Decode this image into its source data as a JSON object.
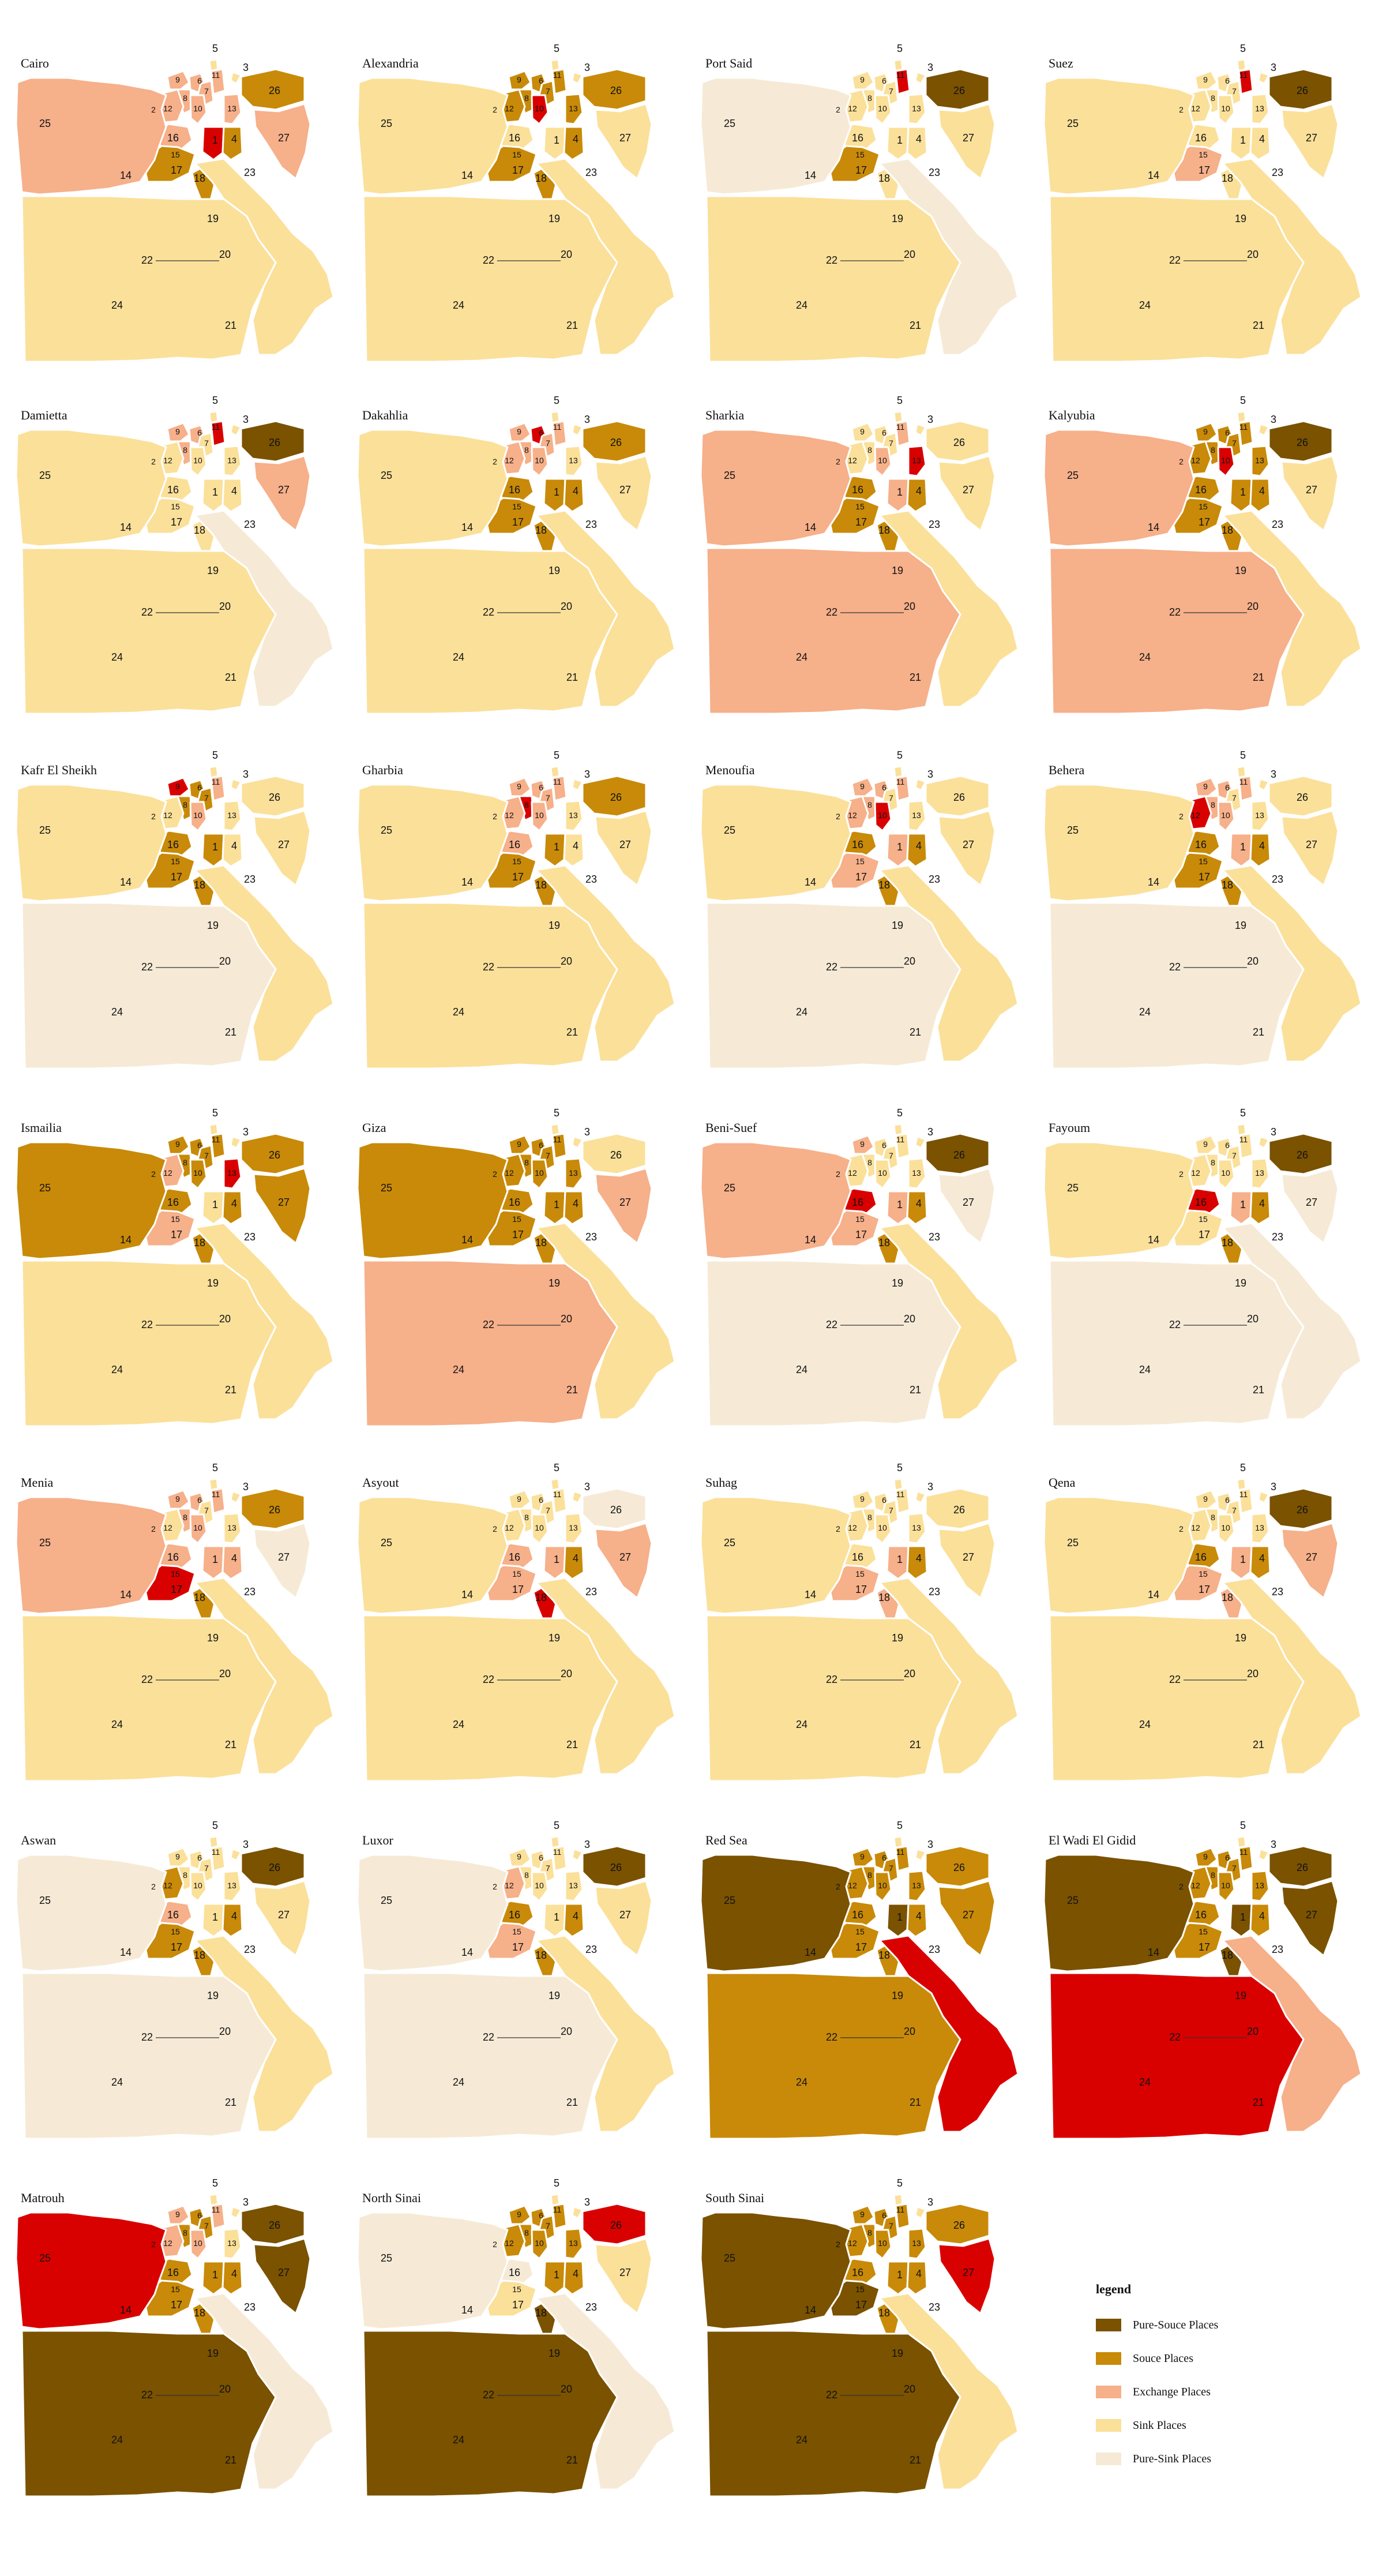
{
  "colors": {
    "pure_source": "#7a5200",
    "source": "#c88a08",
    "exchange": "#f6b08a",
    "sink": "#fbe09a",
    "pure_sink": "#f6ead6",
    "focus": "#d90000"
  },
  "legend": {
    "title": "legend",
    "items": [
      {
        "key": "pure_source",
        "label": "Pure-Souce Places"
      },
      {
        "key": "source",
        "label": "Souce Places"
      },
      {
        "key": "exchange",
        "label": "Exchange Places"
      },
      {
        "key": "sink",
        "label": "Sink Places"
      },
      {
        "key": "pure_sink",
        "label": "Pure-Sink Places"
      }
    ]
  },
  "region_labels": [
    "1",
    "2",
    "3",
    "4",
    "5",
    "6",
    "7",
    "8",
    "9",
    "10",
    "11",
    "12",
    "13",
    "14",
    "15",
    "16",
    "17",
    "18",
    "19",
    "20",
    "21",
    "22",
    "23",
    "24",
    "25",
    "26",
    "27"
  ],
  "maps": [
    {
      "title": "Cairo",
      "colors": {
        "25": "exchange",
        "26": "source",
        "27": "exchange",
        "23": "sink",
        "24": "sink",
        "22": "sink",
        "14": "sink",
        "17": "source",
        "16": "exchange",
        "1": "focus",
        "4": "source",
        "13": "exchange",
        "12": "exchange",
        "2": "sink",
        "9": "exchange",
        "6": "exchange",
        "7": "exchange",
        "3": "sink",
        "5": "sink",
        "8": "exchange",
        "10": "exchange",
        "11": "exchange",
        "15": "exchange",
        "18": "source",
        "19": "source",
        "20": "exchange",
        "21": "exchange"
      }
    },
    {
      "title": "Alexandria",
      "colors": {
        "25": "sink",
        "26": "source",
        "27": "sink",
        "23": "sink",
        "24": "sink",
        "22": "sink",
        "14": "sink",
        "17": "source",
        "16": "sink",
        "1": "sink",
        "4": "source",
        "13": "source",
        "12": "source",
        "2": "sink",
        "9": "source",
        "6": "source",
        "7": "source",
        "3": "sink",
        "5": "sink",
        "8": "source",
        "10": "focus",
        "11": "source",
        "15": "sink",
        "18": "source",
        "19": "source",
        "20": "source",
        "21": "source"
      }
    },
    {
      "title": "Port Said",
      "colors": {
        "25": "pure_sink",
        "26": "pure_source",
        "27": "sink",
        "23": "pure_sink",
        "24": "sink",
        "22": "sink",
        "14": "sink",
        "17": "source",
        "16": "sink",
        "1": "sink",
        "4": "sink",
        "13": "sink",
        "12": "sink",
        "2": "sink",
        "9": "sink",
        "6": "sink",
        "7": "sink",
        "3": "sink",
        "5": "sink",
        "8": "sink",
        "10": "sink",
        "11": "focus",
        "15": "sink",
        "18": "sink",
        "19": "sink",
        "20": "exchange",
        "21": "pure_sink"
      }
    },
    {
      "title": "Suez",
      "colors": {
        "25": "sink",
        "26": "pure_source",
        "27": "sink",
        "23": "sink",
        "24": "sink",
        "22": "sink",
        "14": "sink",
        "17": "exchange",
        "16": "sink",
        "1": "sink",
        "4": "sink",
        "13": "sink",
        "12": "sink",
        "2": "sink",
        "9": "sink",
        "6": "sink",
        "7": "sink",
        "3": "sink",
        "5": "sink",
        "8": "sink",
        "10": "sink",
        "11": "focus",
        "15": "sink",
        "18": "sink",
        "19": "sink",
        "20": "exchange",
        "21": "exchange"
      }
    },
    {
      "title": "Damietta",
      "colors": {
        "25": "sink",
        "26": "pure_source",
        "27": "exchange",
        "23": "pure_sink",
        "24": "sink",
        "22": "sink",
        "14": "sink",
        "17": "sink",
        "16": "sink",
        "1": "sink",
        "4": "sink",
        "13": "sink",
        "12": "sink",
        "2": "sink",
        "9": "exchange",
        "6": "exchange",
        "7": "sink",
        "3": "sink",
        "5": "sink",
        "8": "exchange",
        "10": "sink",
        "11": "focus",
        "15": "sink",
        "18": "sink",
        "19": "sink",
        "20": "sink",
        "21": "sink"
      }
    },
    {
      "title": "Dakahlia",
      "colors": {
        "25": "sink",
        "26": "source",
        "27": "sink",
        "23": "sink",
        "24": "sink",
        "22": "sink",
        "14": "sink",
        "17": "source",
        "16": "source",
        "1": "source",
        "4": "source",
        "13": "sink",
        "12": "exchange",
        "2": "sink",
        "9": "exchange",
        "6": "focus",
        "7": "exchange",
        "3": "sink",
        "5": "sink",
        "8": "exchange",
        "10": "exchange",
        "11": "exchange",
        "15": "sink",
        "18": "source",
        "19": "source",
        "20": "source",
        "21": "source"
      }
    },
    {
      "title": "Sharkia",
      "colors": {
        "25": "exchange",
        "26": "sink",
        "27": "sink",
        "23": "sink",
        "24": "exchange",
        "22": "exchange",
        "14": "sink",
        "17": "source",
        "16": "source",
        "1": "exchange",
        "4": "source",
        "13": "focus",
        "12": "sink",
        "2": "sink",
        "9": "sink",
        "6": "sink",
        "7": "sink",
        "3": "sink",
        "5": "sink",
        "8": "sink",
        "10": "exchange",
        "11": "exchange",
        "15": "sink",
        "18": "source",
        "19": "source",
        "20": "source",
        "21": "source"
      }
    },
    {
      "title": "Kalyubia",
      "colors": {
        "25": "exchange",
        "26": "pure_source",
        "27": "sink",
        "23": "sink",
        "24": "exchange",
        "22": "exchange",
        "14": "exchange",
        "17": "source",
        "16": "source",
        "1": "source",
        "4": "source",
        "13": "source",
        "12": "source",
        "2": "sink",
        "9": "source",
        "6": "source",
        "7": "source",
        "3": "sink",
        "5": "sink",
        "8": "source",
        "10": "focus",
        "11": "source",
        "15": "sink",
        "18": "source",
        "19": "source",
        "20": "source",
        "21": "source"
      }
    },
    {
      "title": "Kafr El Sheikh",
      "colors": {
        "25": "sink",
        "26": "sink",
        "27": "sink",
        "23": "sink",
        "24": "pure_sink",
        "22": "sink",
        "14": "sink",
        "17": "source",
        "16": "source",
        "1": "source",
        "4": "sink",
        "13": "sink",
        "12": "sink",
        "2": "sink",
        "9": "focus",
        "6": "source",
        "7": "source",
        "3": "sink",
        "5": "sink",
        "8": "source",
        "10": "exchange",
        "11": "exchange",
        "15": "exchange",
        "18": "source",
        "19": "source",
        "20": "exchange",
        "21": "exchange"
      }
    },
    {
      "title": "Gharbia",
      "colors": {
        "25": "sink",
        "26": "source",
        "27": "sink",
        "23": "sink",
        "24": "sink",
        "22": "sink",
        "14": "sink",
        "17": "source",
        "16": "exchange",
        "1": "source",
        "4": "sink",
        "13": "sink",
        "12": "exchange",
        "2": "sink",
        "9": "exchange",
        "6": "exchange",
        "7": "exchange",
        "3": "sink",
        "5": "sink",
        "8": "focus",
        "10": "exchange",
        "11": "exchange",
        "15": "exchange",
        "18": "source",
        "19": "source",
        "20": "sink",
        "21": "sink"
      }
    },
    {
      "title": "Menoufia",
      "colors": {
        "25": "sink",
        "26": "sink",
        "27": "sink",
        "23": "sink",
        "24": "pure_sink",
        "22": "pure_sink",
        "14": "sink",
        "17": "exchange",
        "16": "source",
        "1": "exchange",
        "4": "source",
        "13": "sink",
        "12": "exchange",
        "2": "sink",
        "9": "exchange",
        "6": "exchange",
        "7": "sink",
        "3": "sink",
        "5": "sink",
        "8": "exchange",
        "10": "focus",
        "11": "exchange",
        "15": "sink",
        "18": "source",
        "19": "source",
        "20": "sink",
        "21": "exchange"
      }
    },
    {
      "title": "Behera",
      "colors": {
        "25": "sink",
        "26": "sink",
        "27": "sink",
        "23": "sink",
        "24": "pure_sink",
        "22": "pure_sink",
        "14": "sink",
        "17": "source",
        "16": "source",
        "1": "exchange",
        "4": "source",
        "13": "sink",
        "12": "focus",
        "2": "sink",
        "9": "exchange",
        "6": "exchange",
        "7": "sink",
        "3": "sink",
        "5": "sink",
        "8": "exchange",
        "10": "exchange",
        "11": "exchange",
        "15": "sink",
        "18": "source",
        "19": "source",
        "20": "sink",
        "21": "exchange"
      }
    },
    {
      "title": "Ismailia",
      "colors": {
        "25": "source",
        "26": "source",
        "27": "source",
        "23": "sink",
        "24": "sink",
        "22": "sink",
        "14": "sink",
        "17": "exchange",
        "16": "source",
        "1": "sink",
        "4": "source",
        "13": "focus",
        "12": "exchange",
        "2": "sink",
        "9": "source",
        "6": "source",
        "7": "source",
        "3": "sink",
        "5": "sink",
        "8": "source",
        "10": "source",
        "11": "source",
        "15": "sink",
        "18": "source",
        "19": "source",
        "20": "source",
        "21": "pure_source"
      }
    },
    {
      "title": "Giza",
      "colors": {
        "25": "source",
        "26": "sink",
        "27": "exchange",
        "23": "sink",
        "24": "exchange",
        "22": "exchange",
        "14": "focus",
        "17": "source",
        "16": "source",
        "1": "source",
        "4": "source",
        "13": "source",
        "12": "source",
        "2": "sink",
        "9": "source",
        "6": "source",
        "7": "source",
        "3": "sink",
        "5": "sink",
        "8": "source",
        "10": "source",
        "11": "source",
        "15": "sink",
        "18": "source",
        "19": "source",
        "20": "source",
        "21": "source"
      }
    },
    {
      "title": "Beni-Suef",
      "colors": {
        "25": "exchange",
        "26": "pure_source",
        "27": "pure_sink",
        "23": "sink",
        "24": "pure_sink",
        "22": "pure_sink",
        "14": "sink",
        "17": "exchange",
        "16": "focus",
        "1": "exchange",
        "4": "source",
        "13": "sink",
        "12": "sink",
        "2": "sink",
        "9": "exchange",
        "6": "sink",
        "7": "sink",
        "3": "sink",
        "5": "sink",
        "8": "sink",
        "10": "sink",
        "11": "sink",
        "15": "sink",
        "18": "source",
        "19": "source",
        "20": "source",
        "21": "source"
      }
    },
    {
      "title": "Fayoum",
      "colors": {
        "25": "sink",
        "26": "pure_source",
        "27": "pure_sink",
        "23": "pure_sink",
        "24": "pure_sink",
        "22": "pure_sink",
        "14": "sink",
        "17": "sink",
        "16": "focus",
        "1": "exchange",
        "4": "source",
        "13": "sink",
        "12": "sink",
        "2": "sink",
        "9": "sink",
        "6": "sink",
        "7": "sink",
        "3": "sink",
        "5": "sink",
        "8": "sink",
        "10": "sink",
        "11": "sink",
        "15": "sink",
        "18": "source",
        "19": "exchange",
        "20": "pure_sink",
        "21": "source"
      }
    },
    {
      "title": "Menia",
      "colors": {
        "25": "exchange",
        "26": "source",
        "27": "pure_sink",
        "23": "sink",
        "24": "sink",
        "22": "sink",
        "14": "sink",
        "17": "focus",
        "16": "exchange",
        "1": "exchange",
        "4": "exchange",
        "13": "sink",
        "12": "sink",
        "2": "sink",
        "9": "exchange",
        "6": "exchange",
        "7": "sink",
        "3": "sink",
        "5": "sink",
        "8": "exchange",
        "10": "exchange",
        "11": "exchange",
        "15": "sink",
        "18": "source",
        "19": "source",
        "20": "exchange",
        "21": "exchange"
      }
    },
    {
      "title": "Asyout",
      "colors": {
        "25": "sink",
        "26": "pure_sink",
        "27": "exchange",
        "23": "sink",
        "24": "sink",
        "22": "sink",
        "14": "sink",
        "17": "exchange",
        "16": "exchange",
        "1": "exchange",
        "4": "source",
        "13": "sink",
        "12": "sink",
        "2": "sink",
        "9": "sink",
        "6": "sink",
        "7": "sink",
        "3": "sink",
        "5": "sink",
        "8": "sink",
        "10": "sink",
        "11": "sink",
        "15": "sink",
        "18": "focus",
        "19": "source",
        "20": "sink",
        "21": "sink"
      }
    },
    {
      "title": "Suhag",
      "colors": {
        "25": "sink",
        "26": "sink",
        "27": "sink",
        "23": "sink",
        "24": "sink",
        "22": "sink",
        "14": "sink",
        "17": "exchange",
        "16": "sink",
        "1": "exchange",
        "4": "source",
        "13": "sink",
        "12": "sink",
        "2": "sink",
        "9": "sink",
        "6": "sink",
        "7": "sink",
        "3": "sink",
        "5": "sink",
        "8": "sink",
        "10": "sink",
        "11": "sink",
        "15": "sink",
        "18": "exchange",
        "19": "focus",
        "20": "sink",
        "21": "sink"
      }
    },
    {
      "title": "Qena",
      "colors": {
        "25": "sink",
        "26": "pure_source",
        "27": "exchange",
        "23": "sink",
        "24": "sink",
        "22": "sink",
        "14": "sink",
        "17": "exchange",
        "16": "source",
        "1": "exchange",
        "4": "source",
        "13": "sink",
        "12": "sink",
        "2": "sink",
        "9": "sink",
        "6": "sink",
        "7": "sink",
        "3": "sink",
        "5": "sink",
        "8": "sink",
        "10": "sink",
        "11": "sink",
        "15": "sink",
        "18": "exchange",
        "19": "sink",
        "20": "focus",
        "21": "sink"
      }
    },
    {
      "title": "Aswan",
      "colors": {
        "25": "pure_sink",
        "26": "pure_source",
        "27": "sink",
        "23": "sink",
        "24": "pure_sink",
        "22": "pure_sink",
        "14": "sink",
        "17": "source",
        "16": "exchange",
        "1": "sink",
        "4": "source",
        "13": "sink",
        "12": "source",
        "2": "sink",
        "9": "sink",
        "6": "sink",
        "7": "sink",
        "3": "sink",
        "5": "sink",
        "8": "sink",
        "10": "sink",
        "11": "sink",
        "15": "sink",
        "18": "source",
        "19": "source",
        "20": "source",
        "21": "focus"
      }
    },
    {
      "title": "Luxor",
      "colors": {
        "25": "pure_sink",
        "26": "pure_source",
        "27": "sink",
        "23": "sink",
        "24": "pure_sink",
        "22": "pure_sink",
        "14": "sink",
        "17": "exchange",
        "16": "source",
        "1": "sink",
        "4": "source",
        "13": "sink",
        "12": "exchange",
        "2": "sink",
        "9": "sink",
        "6": "sink",
        "7": "sink",
        "3": "sink",
        "5": "sink",
        "8": "sink",
        "10": "sink",
        "11": "sink",
        "15": "sink",
        "18": "source",
        "19": "source",
        "20": "source",
        "21": "exchange"
      }
    },
    {
      "title": "Red Sea",
      "colors": {
        "25": "pure_source",
        "26": "source",
        "27": "source",
        "23": "focus",
        "24": "source",
        "22": "source",
        "14": "source",
        "17": "source",
        "16": "source",
        "1": "pure_source",
        "4": "source",
        "13": "source",
        "12": "source",
        "2": "sink",
        "9": "source",
        "6": "source",
        "7": "source",
        "3": "sink",
        "5": "sink",
        "8": "source",
        "10": "source",
        "11": "source",
        "15": "source",
        "18": "source",
        "19": "source",
        "20": "source",
        "21": "pure_source"
      }
    },
    {
      "title": "El Wadi El Gidid",
      "colors": {
        "25": "pure_source",
        "26": "pure_source",
        "27": "pure_source",
        "23": "exchange",
        "24": "focus",
        "22": "focus",
        "14": "exchange",
        "17": "source",
        "16": "source",
        "1": "pure_source",
        "4": "source",
        "13": "source",
        "12": "source",
        "2": "sink",
        "9": "source",
        "6": "source",
        "7": "source",
        "3": "sink",
        "5": "sink",
        "8": "source",
        "10": "source",
        "11": "source",
        "15": "source",
        "18": "pure_source",
        "19": "pure_source",
        "20": "source",
        "21": "pure_source"
      }
    },
    {
      "title": "Matrouh",
      "colors": {
        "25": "focus",
        "26": "pure_source",
        "27": "pure_source",
        "23": "pure_sink",
        "24": "pure_source",
        "22": "pure_source",
        "14": "sink",
        "17": "source",
        "16": "source",
        "1": "source",
        "4": "source",
        "13": "sink",
        "12": "exchange",
        "2": "sink",
        "9": "exchange",
        "6": "source",
        "7": "source",
        "3": "sink",
        "5": "sink",
        "8": "source",
        "10": "exchange",
        "11": "exchange",
        "15": "source",
        "18": "source",
        "19": "source",
        "20": "pure_source",
        "21": "pure_source"
      }
    },
    {
      "title": "North Sinai",
      "colors": {
        "25": "pure_sink",
        "26": "focus",
        "27": "sink",
        "23": "pure_sink",
        "24": "pure_source",
        "22": "pure_source",
        "14": "source",
        "17": "sink",
        "16": "pure_sink",
        "1": "source",
        "4": "source",
        "13": "source",
        "12": "source",
        "2": "sink",
        "9": "source",
        "6": "source",
        "7": "source",
        "3": "sink",
        "5": "sink",
        "8": "source",
        "10": "source",
        "11": "source",
        "15": "pure_sink",
        "18": "pure_source",
        "19": "pure_source",
        "20": "source",
        "21": "pure_source"
      }
    },
    {
      "title": "South Sinai",
      "colors": {
        "25": "pure_source",
        "26": "source",
        "27": "focus",
        "23": "sink",
        "24": "pure_source",
        "22": "pure_source",
        "14": "exchange",
        "17": "pure_source",
        "16": "source",
        "1": "source",
        "4": "source",
        "13": "source",
        "12": "source",
        "2": "sink",
        "9": "source",
        "6": "source",
        "7": "source",
        "3": "sink",
        "5": "sink",
        "8": "source",
        "10": "source",
        "11": "source",
        "15": "source",
        "18": "source",
        "19": "source",
        "20": "source",
        "21": "source"
      }
    }
  ]
}
